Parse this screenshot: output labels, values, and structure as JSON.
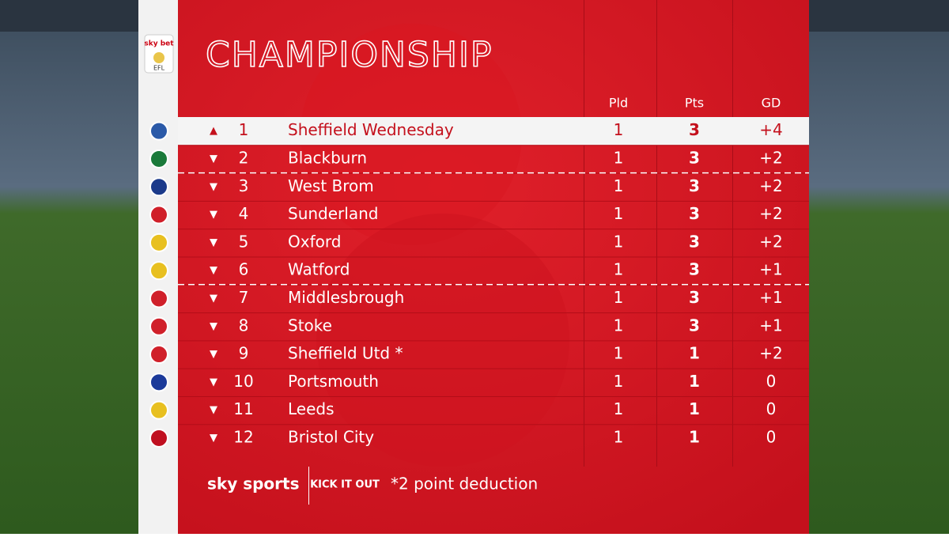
{
  "logo": {
    "top": "sky bet",
    "bottom": "EFL"
  },
  "title": "CHAMPIONSHIP",
  "columns": [
    "Pld",
    "Pts",
    "GD"
  ],
  "rows": [
    {
      "move": "▲",
      "pos": 1,
      "team": "Sheffield Wednesday",
      "pld": 1,
      "pts": 3,
      "gd": "+4"
    },
    {
      "move": "▼",
      "pos": 2,
      "team": "Blackburn",
      "pld": 1,
      "pts": 3,
      "gd": "+2"
    },
    {
      "move": "▼",
      "pos": 3,
      "team": "West Brom",
      "pld": 1,
      "pts": 3,
      "gd": "+2"
    },
    {
      "move": "▼",
      "pos": 4,
      "team": "Sunderland",
      "pld": 1,
      "pts": 3,
      "gd": "+2"
    },
    {
      "move": "▼",
      "pos": 5,
      "team": "Oxford",
      "pld": 1,
      "pts": 3,
      "gd": "+2"
    },
    {
      "move": "▼",
      "pos": 6,
      "team": "Watford",
      "pld": 1,
      "pts": 3,
      "gd": "+1"
    },
    {
      "move": "▼",
      "pos": 7,
      "team": "Middlesbrough",
      "pld": 1,
      "pts": 3,
      "gd": "+1"
    },
    {
      "move": "▼",
      "pos": 8,
      "team": "Stoke",
      "pld": 1,
      "pts": 3,
      "gd": "+1"
    },
    {
      "move": "▼",
      "pos": 9,
      "team": "Sheffield Utd *",
      "pld": 1,
      "pts": 1,
      "gd": "+2"
    },
    {
      "move": "▼",
      "pos": 10,
      "team": "Portsmouth",
      "pld": 1,
      "pts": 1,
      "gd": "0"
    },
    {
      "move": "▼",
      "pos": 11,
      "team": "Leeds",
      "pld": 1,
      "pts": 1,
      "gd": "0"
    },
    {
      "move": "▼",
      "pos": 12,
      "team": "Bristol City",
      "pld": 1,
      "pts": 1,
      "gd": "0"
    }
  ],
  "footer": {
    "broadcaster": "sky sports",
    "campaign": "KICK IT OUT",
    "note": "*2 point deduction"
  }
}
